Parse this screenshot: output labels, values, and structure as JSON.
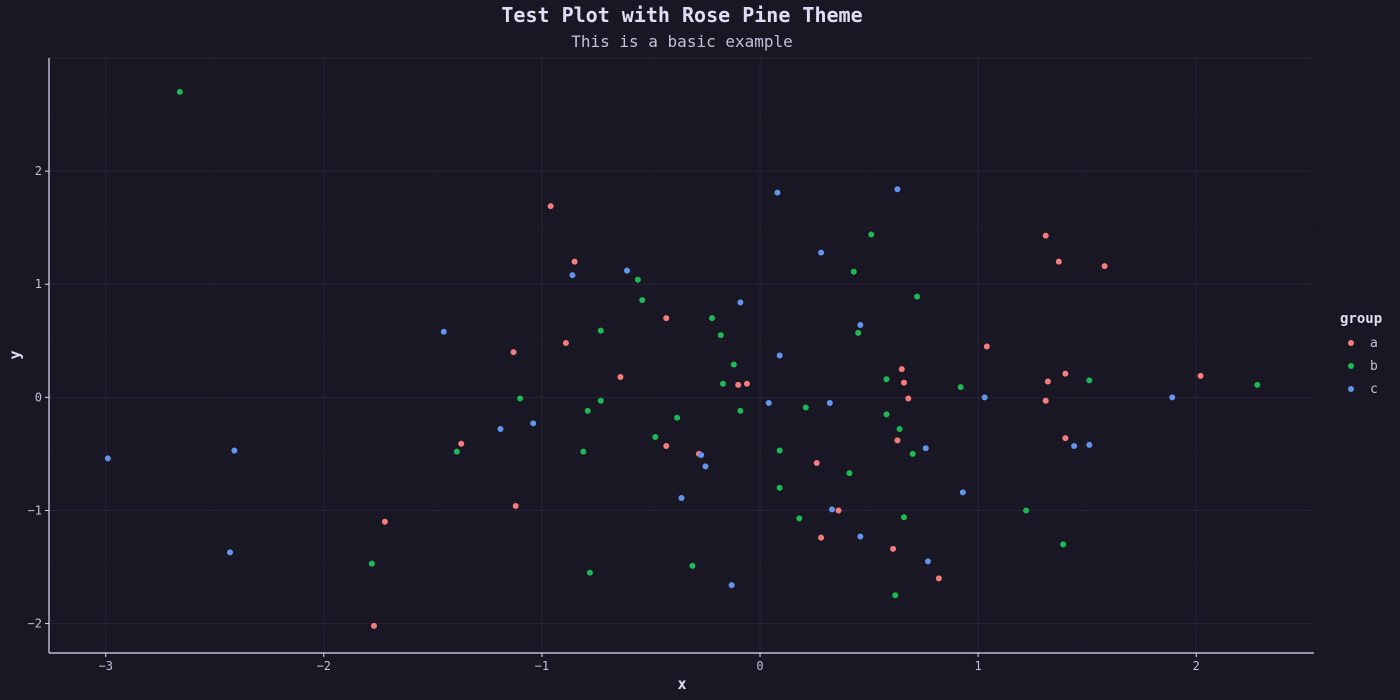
{
  "colors": {
    "background": "#191724",
    "grid": "#26233a",
    "axis": "#e0def4",
    "text": "#e0def4",
    "subtext": "#c4c1d8",
    "group_a": "#f47c7c",
    "group_b": "#1db954",
    "group_c": "#6495ed"
  },
  "chart_data": {
    "type": "scatter",
    "title": "Test Plot with Rose Pine Theme",
    "subtitle": "This is a basic example",
    "xlabel": "x",
    "ylabel": "y",
    "xlim": [
      -3.26,
      2.54
    ],
    "ylim": [
      -2.26,
      3.0
    ],
    "x_ticks": [
      -3,
      -2,
      -1,
      0,
      1,
      2
    ],
    "y_ticks": [
      -2,
      -1,
      0,
      1,
      2
    ],
    "grid": true,
    "legend": {
      "title": "group",
      "position": "right"
    },
    "series": [
      {
        "name": "a",
        "points": [
          [
            -0.96,
            1.69
          ],
          [
            -0.85,
            1.2
          ],
          [
            -0.89,
            0.48
          ],
          [
            -1.13,
            0.4
          ],
          [
            -0.43,
            0.7
          ],
          [
            -0.64,
            0.18
          ],
          [
            -0.1,
            0.11
          ],
          [
            -0.06,
            0.12
          ],
          [
            -1.37,
            -0.41
          ],
          [
            -0.43,
            -0.43
          ],
          [
            -0.28,
            -0.5
          ],
          [
            -1.12,
            -0.96
          ],
          [
            -1.72,
            -1.1
          ],
          [
            -1.77,
            -2.02
          ],
          [
            0.26,
            -0.58
          ],
          [
            0.36,
            -1.0
          ],
          [
            0.28,
            -1.24
          ],
          [
            0.65,
            0.25
          ],
          [
            0.66,
            0.13
          ],
          [
            0.68,
            -0.01
          ],
          [
            0.63,
            -0.38
          ],
          [
            0.61,
            -1.34
          ],
          [
            0.82,
            -1.6
          ],
          [
            1.04,
            0.45
          ],
          [
            1.31,
            1.43
          ],
          [
            1.37,
            1.2
          ],
          [
            1.58,
            1.16
          ],
          [
            1.32,
            0.14
          ],
          [
            1.4,
            0.21
          ],
          [
            1.31,
            -0.03
          ],
          [
            1.4,
            -0.36
          ],
          [
            2.02,
            0.19
          ]
        ]
      },
      {
        "name": "b",
        "points": [
          [
            -2.66,
            2.7
          ],
          [
            -0.56,
            1.04
          ],
          [
            -0.54,
            0.86
          ],
          [
            -0.73,
            0.59
          ],
          [
            -0.22,
            0.7
          ],
          [
            -0.18,
            0.55
          ],
          [
            -0.12,
            0.29
          ],
          [
            -0.17,
            0.12
          ],
          [
            -1.1,
            -0.01
          ],
          [
            -0.73,
            -0.03
          ],
          [
            -0.79,
            -0.12
          ],
          [
            -0.38,
            -0.18
          ],
          [
            -0.48,
            -0.35
          ],
          [
            -1.39,
            -0.48
          ],
          [
            -0.81,
            -0.48
          ],
          [
            -0.09,
            -0.12
          ],
          [
            0.21,
            -0.09
          ],
          [
            0.09,
            -0.47
          ],
          [
            0.09,
            -0.8
          ],
          [
            0.41,
            -0.67
          ],
          [
            0.18,
            -1.07
          ],
          [
            -1.78,
            -1.47
          ],
          [
            -0.78,
            -1.55
          ],
          [
            -0.31,
            -1.49
          ],
          [
            0.51,
            1.44
          ],
          [
            0.43,
            1.11
          ],
          [
            0.72,
            0.89
          ],
          [
            0.45,
            0.57
          ],
          [
            0.58,
            0.16
          ],
          [
            0.58,
            -0.15
          ],
          [
            0.64,
            -0.28
          ],
          [
            0.7,
            -0.5
          ],
          [
            0.66,
            -1.06
          ],
          [
            0.62,
            -1.75
          ],
          [
            0.92,
            0.09
          ],
          [
            1.22,
            -1.0
          ],
          [
            1.39,
            -1.3
          ],
          [
            1.51,
            0.15
          ],
          [
            2.28,
            0.11
          ]
        ]
      },
      {
        "name": "c",
        "points": [
          [
            -2.99,
            -0.54
          ],
          [
            -2.41,
            -0.47
          ],
          [
            -2.43,
            -1.37
          ],
          [
            -1.45,
            0.58
          ],
          [
            -1.19,
            -0.28
          ],
          [
            -1.04,
            -0.23
          ],
          [
            -0.86,
            1.08
          ],
          [
            -0.61,
            1.12
          ],
          [
            -0.09,
            0.84
          ],
          [
            -0.27,
            -0.51
          ],
          [
            -0.25,
            -0.61
          ],
          [
            -0.36,
            -0.89
          ],
          [
            -0.13,
            -1.66
          ],
          [
            0.08,
            1.81
          ],
          [
            0.28,
            1.28
          ],
          [
            0.09,
            0.37
          ],
          [
            0.04,
            -0.05
          ],
          [
            0.32,
            -0.05
          ],
          [
            0.33,
            -0.99
          ],
          [
            0.63,
            1.84
          ],
          [
            0.46,
            0.64
          ],
          [
            0.76,
            -0.45
          ],
          [
            0.46,
            -1.23
          ],
          [
            0.77,
            -1.45
          ],
          [
            0.93,
            -0.84
          ],
          [
            1.03,
            0.0
          ],
          [
            1.44,
            -0.43
          ],
          [
            1.51,
            -0.42
          ],
          [
            1.89,
            0.0
          ]
        ]
      }
    ]
  }
}
